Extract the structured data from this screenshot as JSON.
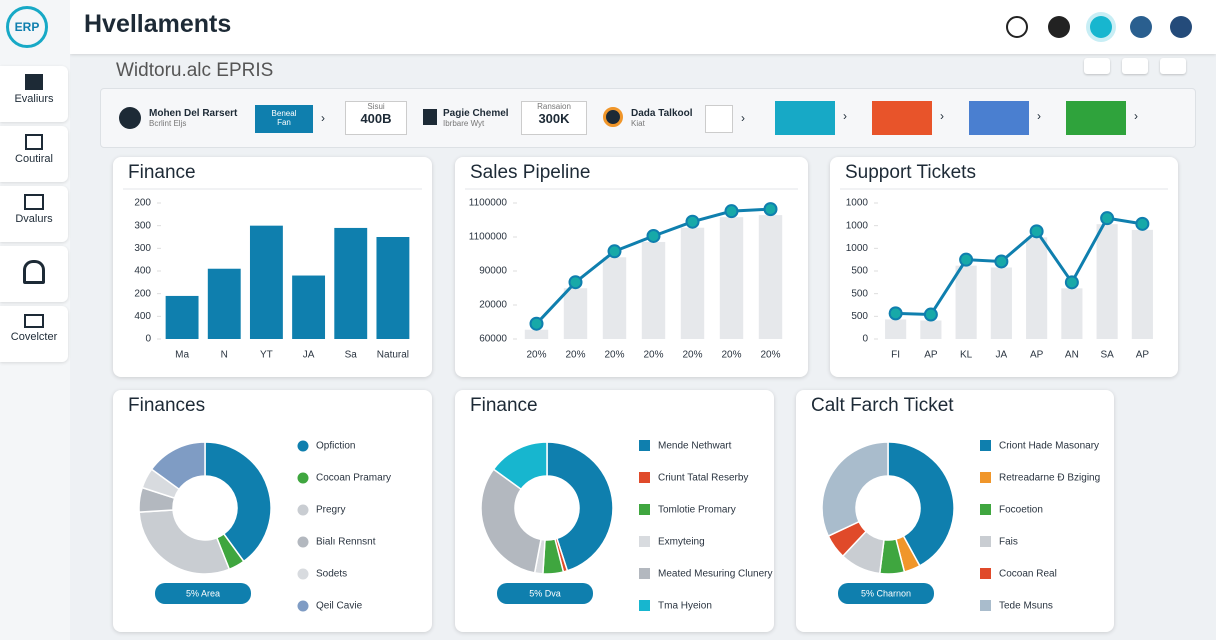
{
  "header": {
    "title": "Hvellaments",
    "subtitle": "Widtoru.alc EPRIS"
  },
  "sidebar": {
    "logo": "ERP",
    "items": [
      "Evaliurs",
      "Coutiral",
      "Dvalurs",
      "Covelcter"
    ]
  },
  "kpis": {
    "items": [
      {
        "title": "Mohen Del Rarsert",
        "subtitle": "Bcrlint Eljs"
      },
      {
        "title": "Pagie Chemel",
        "subtitle": "Ibrbare Wyt"
      },
      {
        "title": "Dada Talkool",
        "subtitle": "Kiat"
      }
    ],
    "button": {
      "title": "Beneal",
      "subtitle": "Fan"
    },
    "stats": [
      {
        "label": "Sisui",
        "value": "400B"
      },
      {
        "label": "Ransaion",
        "value": "300K"
      }
    ],
    "tiles": [
      {
        "color": "#17a9c6"
      },
      {
        "color": "#e8542a"
      },
      {
        "color": "#4a7fd0"
      },
      {
        "color": "#2fa33c"
      }
    ]
  },
  "chart_data": [
    {
      "type": "bar",
      "title": "Finance",
      "color": "#0f7fae",
      "categories": [
        "Ma",
        "N",
        "YT",
        "JA",
        "Sa",
        "Natural"
      ],
      "values": [
        1.9,
        3.1,
        5.0,
        2.8,
        4.9,
        4.5
      ],
      "ylim": [
        0,
        6
      ],
      "yticks": [
        {
          "value": 0,
          "label": "0"
        },
        {
          "value": 1,
          "label": "400"
        },
        {
          "value": 2,
          "label": "200"
        },
        {
          "value": 3,
          "label": "400"
        },
        {
          "value": 4,
          "label": "300"
        },
        {
          "value": 5,
          "label": "300"
        },
        {
          "value": 6,
          "label": "200"
        }
      ]
    },
    {
      "type": "line",
      "title": "Sales Pipeline",
      "color": "#0f7fae",
      "categories": [
        "20%",
        "20%",
        "20%",
        "20%",
        "20%",
        "20%",
        "20%"
      ],
      "values": [
        0.45,
        1.67,
        2.58,
        3.03,
        3.45,
        3.76,
        3.82
      ],
      "ylim": [
        0,
        4
      ],
      "yticks": [
        {
          "value": 0,
          "label": "60000"
        },
        {
          "value": 1,
          "label": "20000"
        },
        {
          "value": 2,
          "label": "90000"
        },
        {
          "value": 3,
          "label": "1100000"
        },
        {
          "value": 4,
          "label": "1100000"
        }
      ]
    },
    {
      "type": "line",
      "title": "Support Tickets",
      "color": "#0f7fae",
      "categories": [
        "FI",
        "AP",
        "KL",
        "JA",
        "AP",
        "AN",
        "SA",
        "AP"
      ],
      "values": [
        1.13,
        1.08,
        3.5,
        3.42,
        4.75,
        2.5,
        5.33,
        5.08
      ],
      "ylim": [
        0,
        6
      ],
      "yticks": [
        {
          "value": 0,
          "label": "0"
        },
        {
          "value": 1,
          "label": "500"
        },
        {
          "value": 2,
          "label": "500"
        },
        {
          "value": 3,
          "label": "500"
        },
        {
          "value": 4,
          "label": "1000"
        },
        {
          "value": 5,
          "label": "1000"
        },
        {
          "value": 6,
          "label": "1000"
        }
      ]
    },
    {
      "type": "donut",
      "title": "Finances",
      "badge": "5% Area",
      "legend_marker": "circle",
      "categories": [
        "Opfiction",
        "Cocoan Pramary",
        "Pregry",
        "Bialı Rennsnt",
        "Sodets",
        "Qeil Cavie"
      ],
      "colors": [
        "#0f7fae",
        "#3fa63f",
        "#c9cdd2",
        "#b3b8bf",
        "#d8dbdf",
        "#7f9cc4"
      ],
      "values": [
        40,
        4,
        30,
        6,
        5,
        15
      ]
    },
    {
      "type": "donut",
      "title": "Finance",
      "badge": "5% Dva",
      "legend_marker": "square",
      "categories": [
        "Mende Nethwart",
        "Criunt Tatal Reserby",
        "Tomlotie Promary",
        "Exmyteing",
        "Meated Mesuring Clunery",
        "Tma Hyeion"
      ],
      "colors": [
        "#0f7fae",
        "#e04a2a",
        "#3fa63f",
        "#d8dbdf",
        "#b3b8bf",
        "#17b6cf"
      ],
      "values": [
        45,
        1,
        5,
        2,
        32,
        15
      ]
    },
    {
      "type": "donut",
      "title": "Calt Farch Ticket",
      "badge": "5% Charnon",
      "legend_marker": "square",
      "categories": [
        "Criont Hade Masonary",
        "Retreadarne Ð Bziging",
        "Focoetion",
        "Fais",
        "Cocoan Real",
        "Tede Msuns"
      ],
      "colors": [
        "#0f7fae",
        "#f0962a",
        "#3fa63f",
        "#c9cdd2",
        "#e04a2a",
        "#a9bccc"
      ],
      "values": [
        42,
        4,
        6,
        10,
        6,
        32
      ]
    }
  ]
}
